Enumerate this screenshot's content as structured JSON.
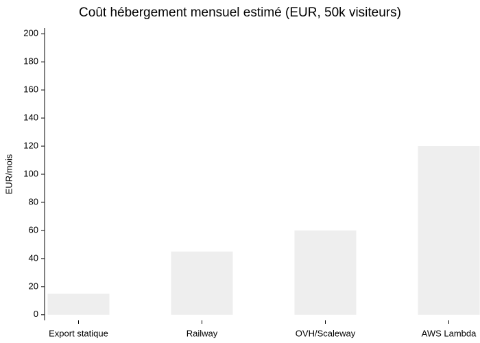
{
  "chart_data": {
    "type": "bar",
    "title": "Coût hébergement mensuel estimé (EUR, 50k visiteurs)",
    "y_label": "EUR/mois",
    "categories": [
      "Export statique",
      "Railway",
      "OVH/Scaleway",
      "AWS Lambda"
    ],
    "values": [
      15,
      45,
      60,
      120
    ],
    "color": "#eeeeee",
    "ylim": [
      -4,
      204
    ],
    "yticks": [
      0,
      20,
      40,
      60,
      80,
      100,
      120,
      140,
      160,
      180,
      200
    ],
    "grid": false
  }
}
